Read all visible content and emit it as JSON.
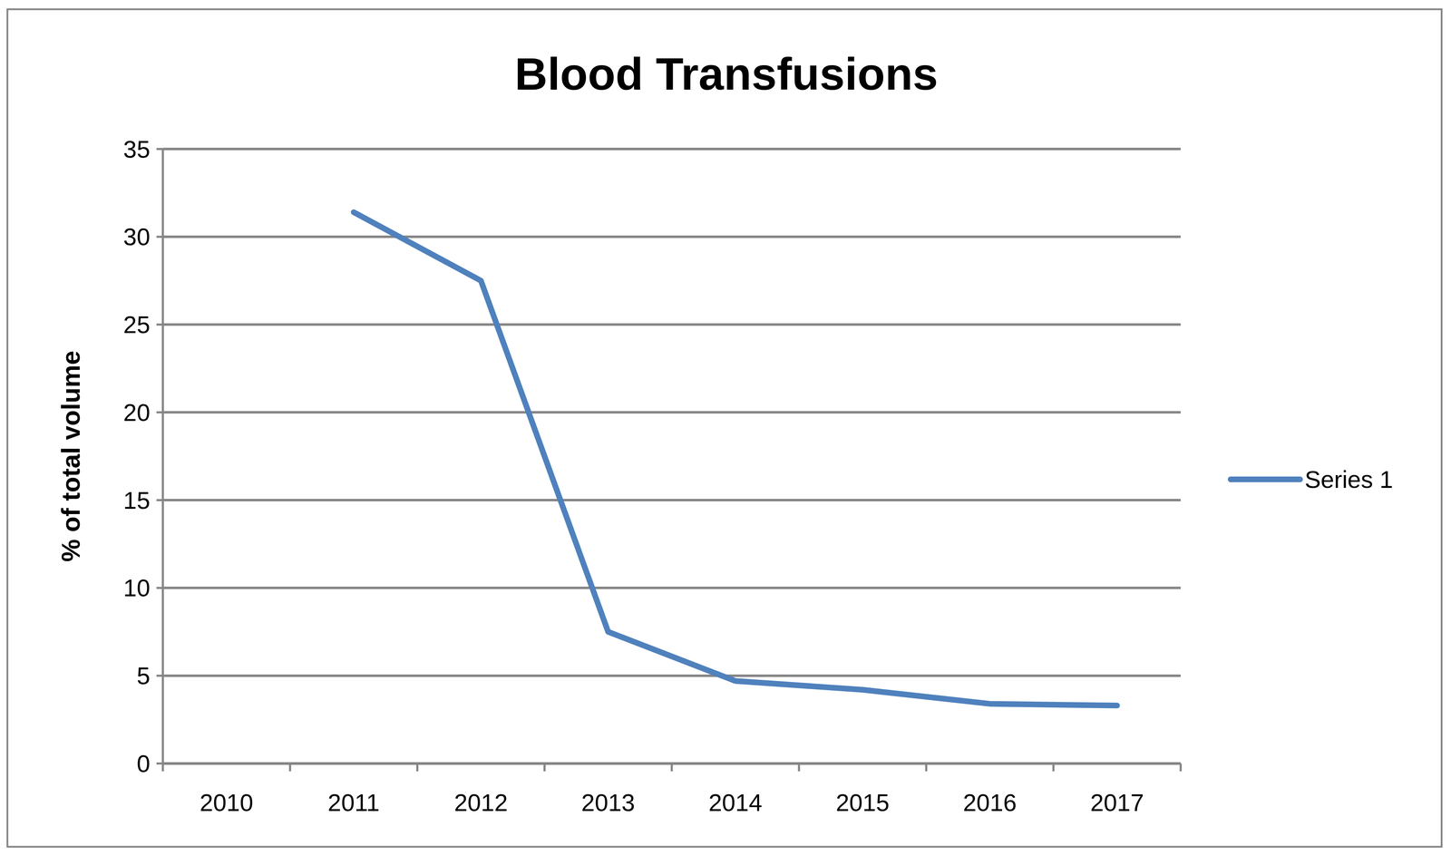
{
  "chart_data": {
    "type": "line",
    "title": "Blood Transfusions",
    "y_label": "% of total volume",
    "categories": [
      "2010",
      "2011",
      "2012",
      "2013",
      "2014",
      "2015",
      "2016",
      "2017"
    ],
    "series": [
      {
        "name": "Series 1",
        "color": "#4f81bd",
        "values": [
          null,
          31.4,
          27.5,
          7.5,
          4.7,
          4.2,
          3.4,
          3.3
        ]
      }
    ],
    "ylim": [
      0,
      35
    ],
    "yticks": [
      0,
      5,
      10,
      15,
      20,
      25,
      30,
      35
    ],
    "grid": true,
    "legend": "right"
  }
}
